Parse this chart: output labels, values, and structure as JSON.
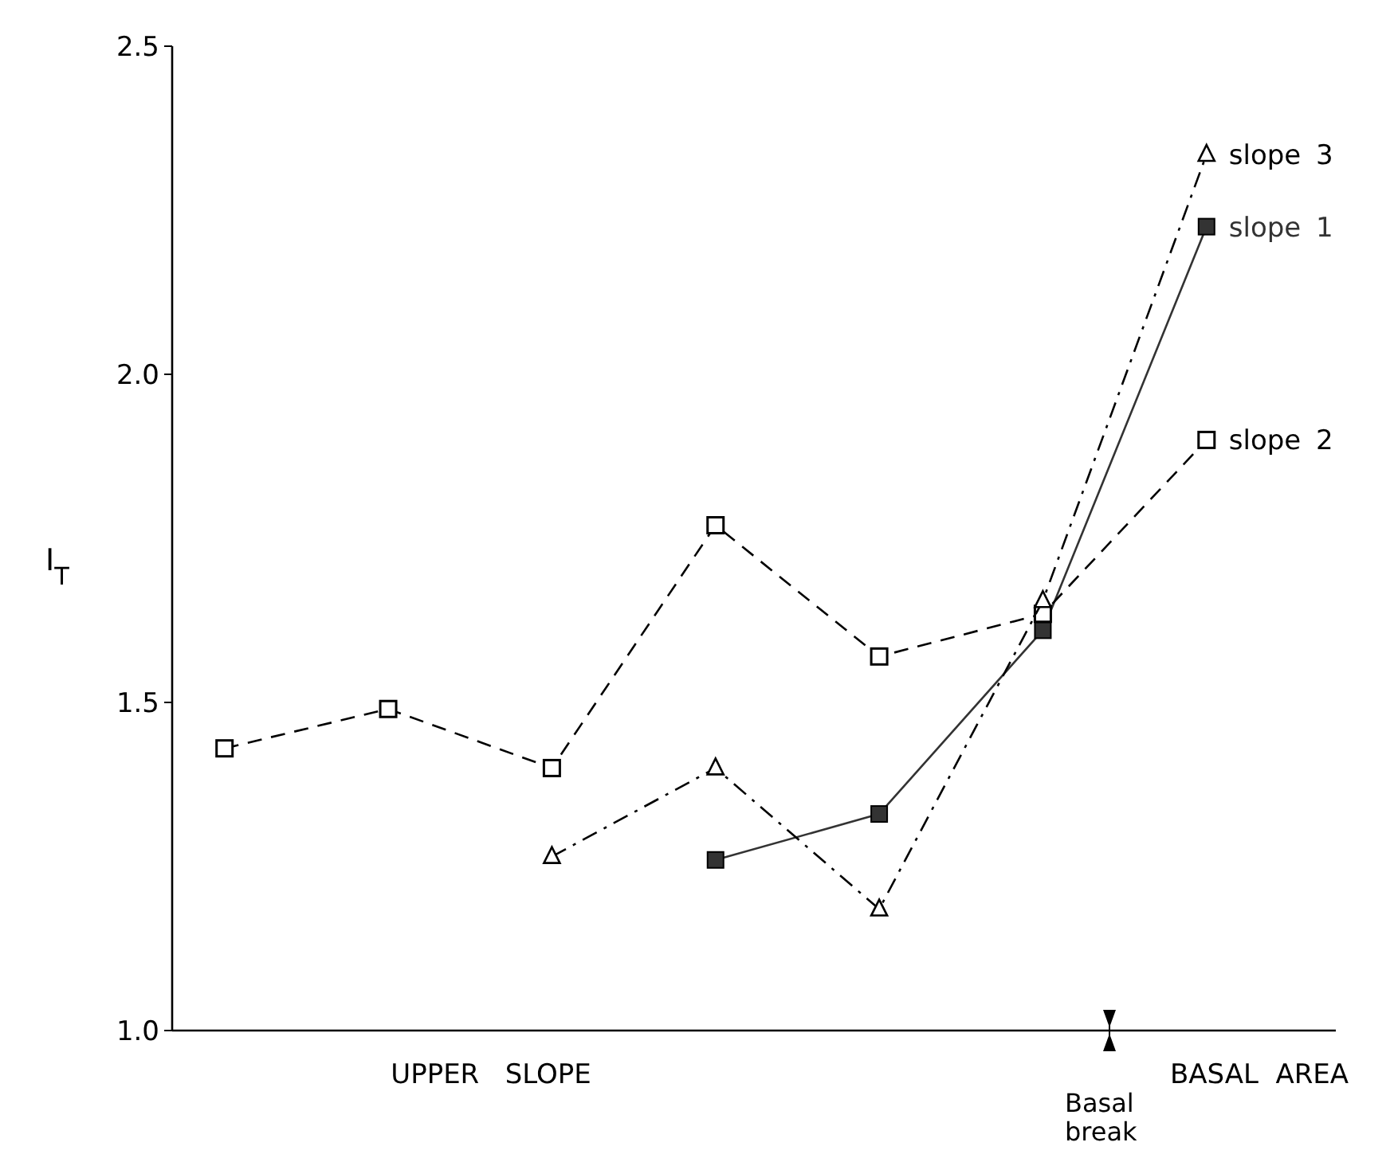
{
  "chart_data": {
    "type": "line",
    "ylabel": "I$_{T}$",
    "categories": [
      null,
      null,
      null,
      null,
      null,
      null,
      null
    ],
    "series": [
      {
        "name": "slope 1",
        "color": "#333333",
        "marker": "square",
        "line_style": "solid",
        "values": [
          null,
          null,
          null,
          1.26,
          1.33,
          1.61,
          2.225
        ]
      },
      {
        "name": "slope 2",
        "color": "#000000",
        "marker": "square-open",
        "line_style": "dashed",
        "values": [
          1.43,
          1.49,
          1.4,
          1.77,
          1.57,
          1.635,
          1.9
        ]
      },
      {
        "name": "slope 3",
        "color": "#000000",
        "marker": "triangle-open",
        "line_style": "dashdot",
        "values": [
          null,
          null,
          1.265,
          1.4,
          1.185,
          1.655,
          2.335
        ]
      }
    ],
    "ylim": [
      1.0,
      2.5
    ],
    "yticks": [
      {
        "value": 1,
        "label": "1.0"
      },
      1.5,
      {
        "value": 2,
        "label": "2.0"
      },
      2.5
    ],
    "annotations": [
      "UPPER   SLOPE",
      "BASAL  AREA",
      "Basal break"
    ]
  }
}
